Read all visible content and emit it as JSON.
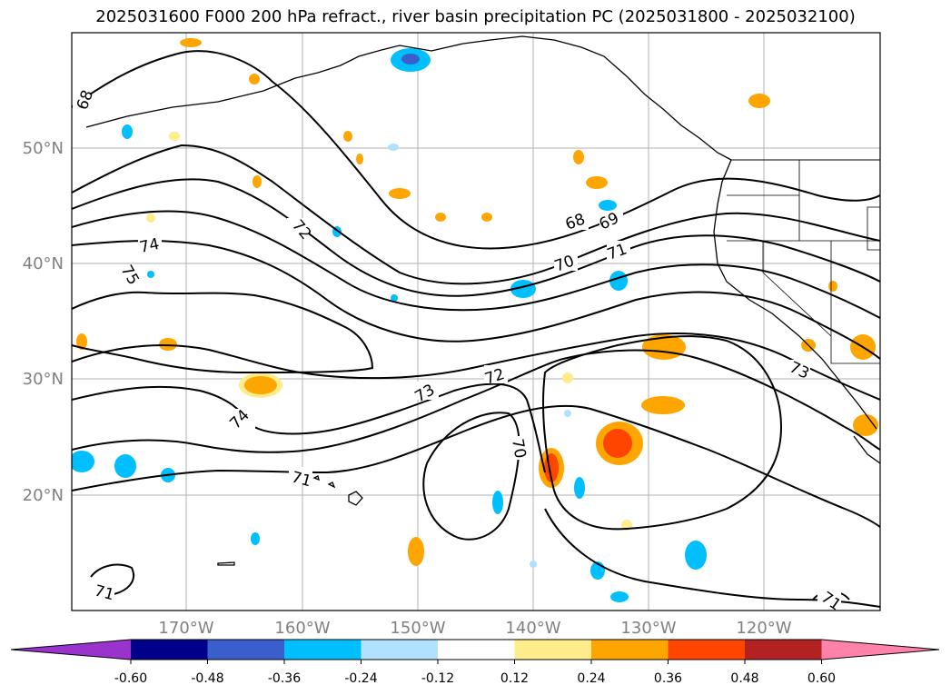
{
  "title": "2025031600 F000 200 hPa refract., river basin precipitation PC (2025031800 - 2025032100)",
  "map": {
    "lat_ticks": [
      {
        "value": 50,
        "label": "50°N"
      },
      {
        "value": 40,
        "label": "40°N"
      },
      {
        "value": 30,
        "label": "30°N"
      },
      {
        "value": 20,
        "label": "20°N"
      }
    ],
    "lon_ticks": [
      {
        "value": -170,
        "label": "170°W"
      },
      {
        "value": -160,
        "label": "160°W"
      },
      {
        "value": -150,
        "label": "150°W"
      },
      {
        "value": -140,
        "label": "140°W"
      },
      {
        "value": -130,
        "label": "130°W"
      },
      {
        "value": -120,
        "label": "120°W"
      }
    ],
    "contour_labels": [
      "68",
      "75",
      "74",
      "72",
      "68",
      "69",
      "70",
      "71",
      "73",
      "72",
      "70",
      "73",
      "74",
      "71",
      "71",
      "71"
    ],
    "colors": {
      "gridline": "#b0b0b0",
      "contour": "#000000",
      "axis_label": "#808080"
    }
  },
  "colorbar": {
    "levels": [
      "-0.60",
      "-0.48",
      "-0.36",
      "-0.24",
      "-0.12",
      "0.12",
      "0.24",
      "0.36",
      "0.48",
      "0.60"
    ],
    "colors": [
      "#9a32cd",
      "#00008b",
      "#3a5fcd",
      "#00bfff",
      "#b0e2ff",
      "#ffffff",
      "#ffec8b",
      "#ffa500",
      "#ff4500",
      "#b22222",
      "#ff82ab"
    ]
  }
}
